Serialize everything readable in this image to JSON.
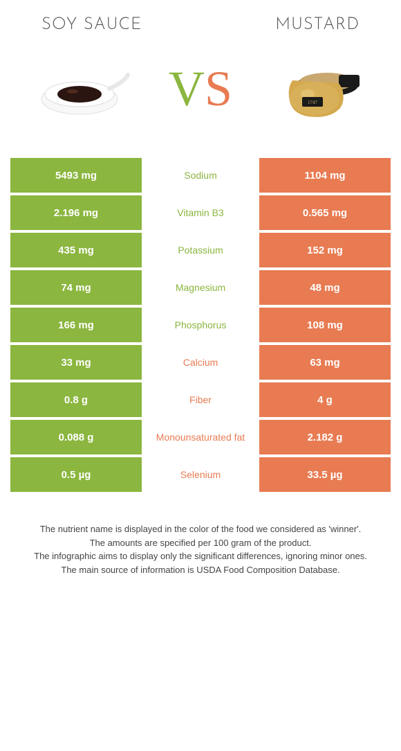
{
  "colors": {
    "green": "#8bb63f",
    "orange": "#e87b52",
    "background": "#ffffff"
  },
  "header": {
    "left_title": "Soy sauce",
    "right_title": "Mustard"
  },
  "vs": {
    "v": "V",
    "s": "S"
  },
  "rows": [
    {
      "left": "5493 mg",
      "label": "Sodium",
      "right": "1104 mg",
      "winner": "left"
    },
    {
      "left": "2.196 mg",
      "label": "Vitamin B3",
      "right": "0.565 mg",
      "winner": "left"
    },
    {
      "left": "435 mg",
      "label": "Potassium",
      "right": "152 mg",
      "winner": "left"
    },
    {
      "left": "74 mg",
      "label": "Magnesium",
      "right": "48 mg",
      "winner": "left"
    },
    {
      "left": "166 mg",
      "label": "Phosphorus",
      "right": "108 mg",
      "winner": "left"
    },
    {
      "left": "33 mg",
      "label": "Calcium",
      "right": "63 mg",
      "winner": "right"
    },
    {
      "left": "0.8 g",
      "label": "Fiber",
      "right": "4 g",
      "winner": "right"
    },
    {
      "left": "0.088 g",
      "label": "Monounsaturated fat",
      "right": "2.182 g",
      "winner": "right"
    },
    {
      "left": "0.5 µg",
      "label": "Selenium",
      "right": "33.5 µg",
      "winner": "right"
    }
  ],
  "notes": {
    "line1": "The nutrient name is displayed in the color of the food we considered as 'winner'.",
    "line2": "The amounts are specified per 100 gram of the product.",
    "line3": "The infographic aims to display only the significant differences, ignoring minor ones.",
    "line4": "The main source of information is USDA Food Composition Database."
  }
}
